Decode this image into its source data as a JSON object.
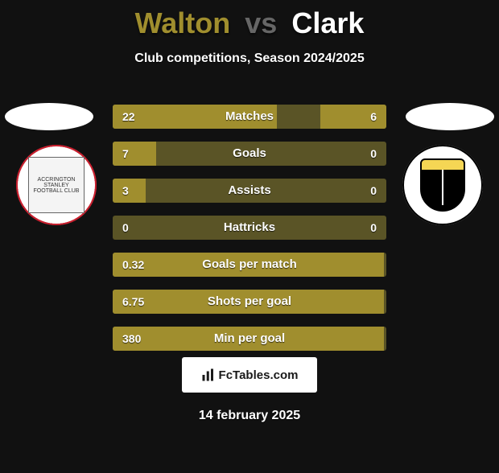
{
  "title": {
    "player1": "Walton",
    "vs": "vs",
    "player2": "Clark",
    "p1_color": "#a08e2e",
    "vs_color": "#666666",
    "p2_color": "#ffffff"
  },
  "subtitle": "Club competitions, Season 2024/2025",
  "colors": {
    "background": "#111111",
    "bar_track": "#5a5426",
    "bar_fill": "#a08e2e",
    "text": "#ffffff"
  },
  "bars": [
    {
      "label": "Matches",
      "left_val": "22",
      "right_val": "6",
      "left_pct": 60,
      "right_pct": 24
    },
    {
      "label": "Goals",
      "left_val": "7",
      "right_val": "0",
      "left_pct": 16,
      "right_pct": 0
    },
    {
      "label": "Assists",
      "left_val": "3",
      "right_val": "0",
      "left_pct": 12,
      "right_pct": 0
    },
    {
      "label": "Hattricks",
      "left_val": "0",
      "right_val": "0",
      "left_pct": 0,
      "right_pct": 0
    },
    {
      "label": "Goals per match",
      "left_val": "0.32",
      "right_val": "",
      "left_pct": 99,
      "right_pct": 0
    },
    {
      "label": "Shots per goal",
      "left_val": "6.75",
      "right_val": "",
      "left_pct": 99,
      "right_pct": 0
    },
    {
      "label": "Min per goal",
      "left_val": "380",
      "right_val": "",
      "left_pct": 99,
      "right_pct": 0
    }
  ],
  "crest_left_label": "ACCRINGTON STANLEY FOOTBALL CLUB",
  "crest_right_label": "PORT VALE F.C.",
  "footer": {
    "brand": "FcTables.com"
  },
  "date": "14 february 2025"
}
